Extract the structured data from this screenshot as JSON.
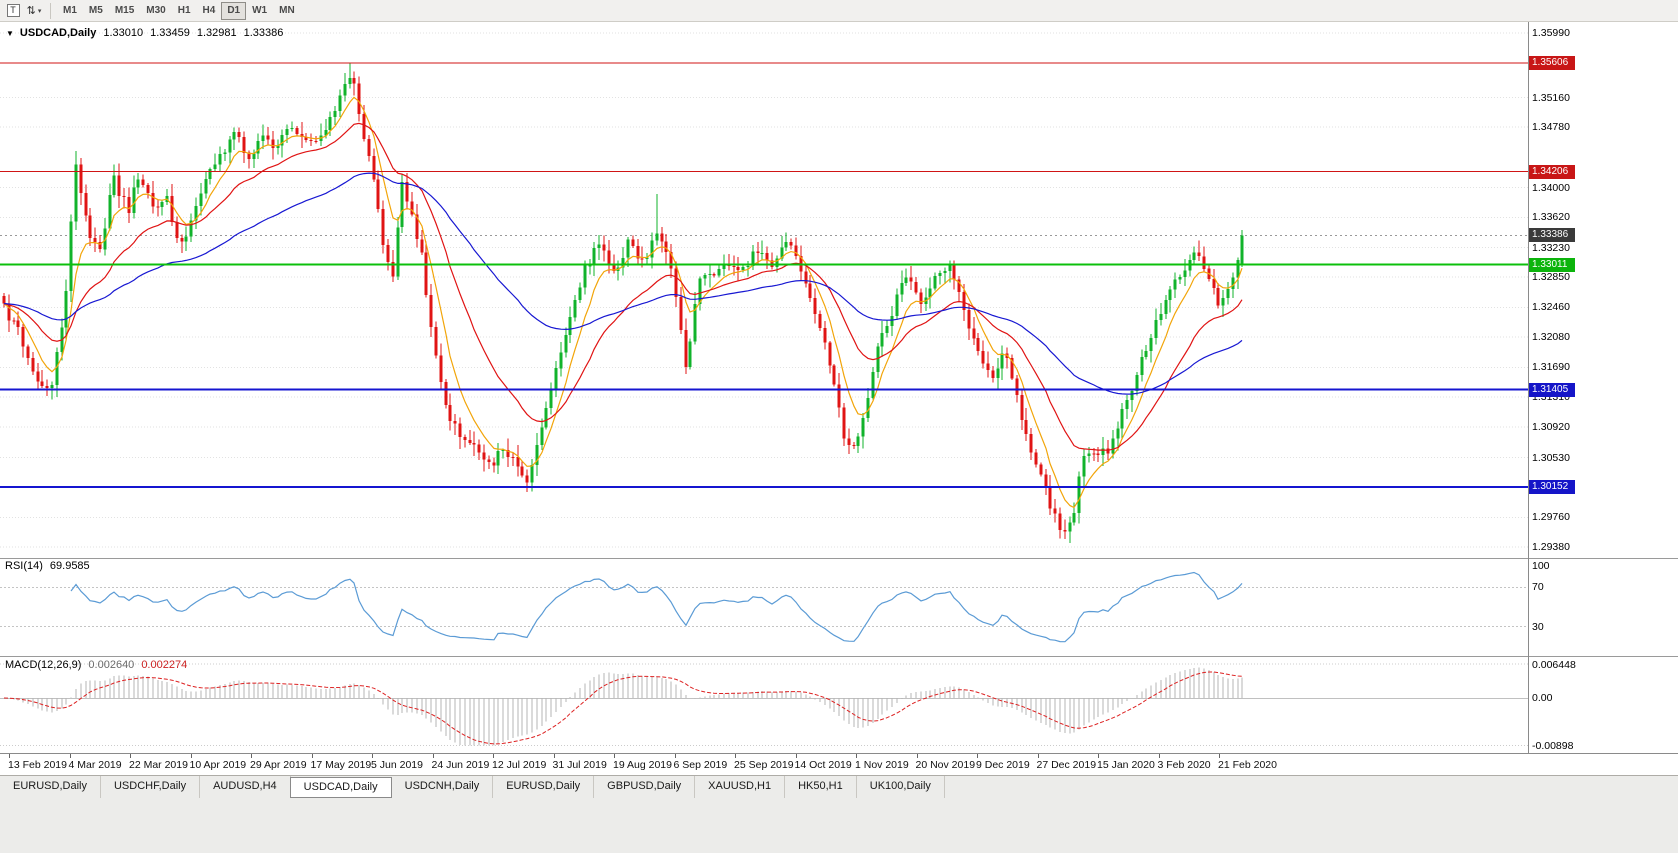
{
  "toolbar": {
    "icon_primary_glyph": "T",
    "icon_cursor_glyph": "⇅",
    "icon_dropdown_glyph": "▾",
    "timeframes": [
      "M1",
      "M5",
      "M15",
      "M30",
      "H1",
      "H4",
      "D1",
      "W1",
      "MN"
    ],
    "active_timeframe": "D1"
  },
  "header": {
    "dropdown_glyph": "▼",
    "symbol": "USDCAD,Daily",
    "open": "1.33010",
    "high": "1.33459",
    "low": "1.32981",
    "close": "1.33386"
  },
  "indicators": {
    "rsi": {
      "label": "RSI(14)",
      "value": "69.9585",
      "line_color": "#5b9bd5",
      "levels": [
        {
          "text": "100",
          "value": 100
        },
        {
          "text": "70",
          "value": 70
        },
        {
          "text": "30",
          "value": 30
        }
      ]
    },
    "macd": {
      "label": "MACD(12,26,9)",
      "value": "0.002640",
      "signal": "0.002274",
      "axis": [
        {
          "text": "0.006448",
          "value": 0.006448
        },
        {
          "text": "0.00",
          "value": 0
        },
        {
          "text": "-0.00898",
          "value": -0.00898
        }
      ]
    }
  },
  "price_axis": {
    "labels": [
      {
        "text": "1.35990",
        "value": 1.3599
      },
      {
        "text": "1.35160",
        "value": 1.3516
      },
      {
        "text": "1.34780",
        "value": 1.3478
      },
      {
        "text": "1.34000",
        "value": 1.34
      },
      {
        "text": "1.33620",
        "value": 1.3362
      },
      {
        "text": "1.33230",
        "value": 1.3323
      },
      {
        "text": "1.32850",
        "value": 1.3285
      },
      {
        "text": "1.32460",
        "value": 1.3246
      },
      {
        "text": "1.32080",
        "value": 1.3208
      },
      {
        "text": "1.31690",
        "value": 1.3169
      },
      {
        "text": "1.31310",
        "value": 1.3131
      },
      {
        "text": "1.30920",
        "value": 1.3092
      },
      {
        "text": "1.30530",
        "value": 1.3053
      },
      {
        "text": "1.29760",
        "value": 1.2976
      },
      {
        "text": "1.29380",
        "value": 1.2938
      }
    ],
    "tags": [
      {
        "text": "1.35606",
        "value": 1.35606,
        "color": "#c81616"
      },
      {
        "text": "1.34206",
        "value": 1.34206,
        "color": "#c81616"
      },
      {
        "text": "1.33386",
        "value": 1.33386,
        "color": "#3a3a3a"
      },
      {
        "text": "1.33011",
        "value": 1.33011,
        "color": "#0cb40c"
      },
      {
        "text": "1.31405",
        "value": 1.31405,
        "color": "#1515c8"
      },
      {
        "text": "1.30152",
        "value": 1.30152,
        "color": "#1515c8"
      }
    ]
  },
  "hlines": [
    {
      "value": 1.35606,
      "color": "#d01515",
      "width": 1
    },
    {
      "value": 1.34206,
      "color": "#d01515",
      "width": 1
    },
    {
      "value": 1.33011,
      "color": "#0cc00c",
      "width": 2
    },
    {
      "value": 1.31405,
      "color": "#1515d0",
      "width": 2
    },
    {
      "value": 1.30152,
      "color": "#1515d0",
      "width": 2
    }
  ],
  "bid_line": {
    "value": 1.33386,
    "color": "#999999"
  },
  "time_axis": [
    "13 Feb 2019",
    "4 Mar 2019",
    "22 Mar 2019",
    "10 Apr 2019",
    "29 Apr 2019",
    "17 May 2019",
    "5 Jun 2019",
    "24 Jun 2019",
    "12 Jul 2019",
    "31 Jul 2019",
    "19 Aug 2019",
    "6 Sep 2019",
    "25 Sep 2019",
    "14 Oct 2019",
    "1 Nov 2019",
    "20 Nov 2019",
    "9 Dec 2019",
    "27 Dec 2019",
    "15 Jan 2020",
    "3 Feb 2020",
    "21 Feb 2020"
  ],
  "tabs": {
    "items": [
      "EURUSD,Daily",
      "USDCHF,Daily",
      "AUDUSD,H4",
      "USDCAD,Daily",
      "USDCNH,Daily",
      "EURUSD,Daily",
      "GBPUSD,Daily",
      "XAUUSD,H1",
      "HK50,H1",
      "UK100,Daily"
    ],
    "active_index": 3
  },
  "colors": {
    "up": "#11b32b",
    "down": "#e01414",
    "ma_fast": "#f2a50a",
    "ma_medium": "#e01414",
    "ma_slow": "#1818d2",
    "macd_hist": "#b5b5b5",
    "macd_signal": "#dd2222",
    "grid": "#e2e2e2"
  },
  "chart_data": {
    "type": "candlestick",
    "symbol": "USDCAD",
    "timeframe": "Daily",
    "candle_count": 259,
    "last_ohlc": {
      "open": 1.3301,
      "high": 1.33459,
      "low": 1.32981,
      "close": 1.33386
    },
    "visible_price_range": [
      1.2938,
      1.3599
    ],
    "horizontal_levels": [
      1.35606,
      1.34206,
      1.33011,
      1.31405,
      1.30152
    ],
    "path": {
      "f": [
        0,
        0.012,
        0.025,
        0.038,
        0.05,
        0.058,
        0.068,
        0.078,
        0.088,
        0.1,
        0.11,
        0.122,
        0.132,
        0.142,
        0.152,
        0.163,
        0.175,
        0.186,
        0.197,
        0.208,
        0.22,
        0.232,
        0.245,
        0.258,
        0.27,
        0.28,
        0.288,
        0.297,
        0.306,
        0.314,
        0.322,
        0.33,
        0.338,
        0.346,
        0.356,
        0.368,
        0.38,
        0.392,
        0.403,
        0.414,
        0.423,
        0.432,
        0.443,
        0.455,
        0.468,
        0.48,
        0.492,
        0.504,
        0.516,
        0.528,
        0.538,
        0.545,
        0.551,
        0.56,
        0.572,
        0.584,
        0.596,
        0.608,
        0.62,
        0.632,
        0.645,
        0.658,
        0.67,
        0.679,
        0.687,
        0.695,
        0.706,
        0.718,
        0.729,
        0.74,
        0.752,
        0.764,
        0.777,
        0.789,
        0.8,
        0.808,
        0.818,
        0.827,
        0.836,
        0.846,
        0.855,
        0.863,
        0.871,
        0.882,
        0.893,
        0.902,
        0.913,
        0.925,
        0.937,
        0.95,
        0.962,
        0.973,
        0.983,
        0.992,
        1.0
      ],
      "price": [
        1.3245,
        1.3215,
        1.316,
        1.314,
        1.326,
        1.3435,
        1.334,
        1.332,
        1.3415,
        1.337,
        1.342,
        1.3365,
        1.3385,
        1.332,
        1.3365,
        1.3415,
        1.344,
        1.3475,
        1.344,
        1.3465,
        1.345,
        1.348,
        1.3455,
        1.347,
        1.351,
        1.355,
        1.349,
        1.342,
        1.333,
        1.329,
        1.341,
        1.336,
        1.331,
        1.32,
        1.312,
        1.308,
        1.3065,
        1.304,
        1.3065,
        1.3045,
        1.302,
        1.308,
        1.315,
        1.322,
        1.329,
        1.333,
        1.329,
        1.333,
        1.3305,
        1.334,
        1.33,
        1.323,
        1.316,
        1.328,
        1.329,
        1.3305,
        1.329,
        1.332,
        1.3295,
        1.333,
        1.329,
        1.323,
        1.315,
        1.3075,
        1.306,
        1.311,
        1.32,
        1.3245,
        1.329,
        1.3245,
        1.329,
        1.3305,
        1.3235,
        1.318,
        1.315,
        1.3195,
        1.313,
        1.3075,
        1.304,
        1.2985,
        1.296,
        1.2975,
        1.305,
        1.306,
        1.3065,
        1.3105,
        1.3155,
        1.3205,
        1.325,
        1.329,
        1.3315,
        1.328,
        1.3245,
        1.3285,
        1.3339
      ]
    },
    "spikes": [
      {
        "f": 0.058,
        "price": 1.3447
      },
      {
        "f": 0.28,
        "price": 1.356
      },
      {
        "f": 0.528,
        "price": 1.3392
      }
    ],
    "dips": [
      {
        "f": 0.038,
        "price": 1.3128
      },
      {
        "f": 0.423,
        "price": 1.3016
      },
      {
        "f": 0.855,
        "price": 1.295
      }
    ],
    "moving_averages": [
      {
        "period": 7,
        "color_key": "ma_fast"
      },
      {
        "period": 22,
        "color_key": "ma_medium"
      },
      {
        "period": 65,
        "color_key": "ma_slow"
      }
    ]
  }
}
